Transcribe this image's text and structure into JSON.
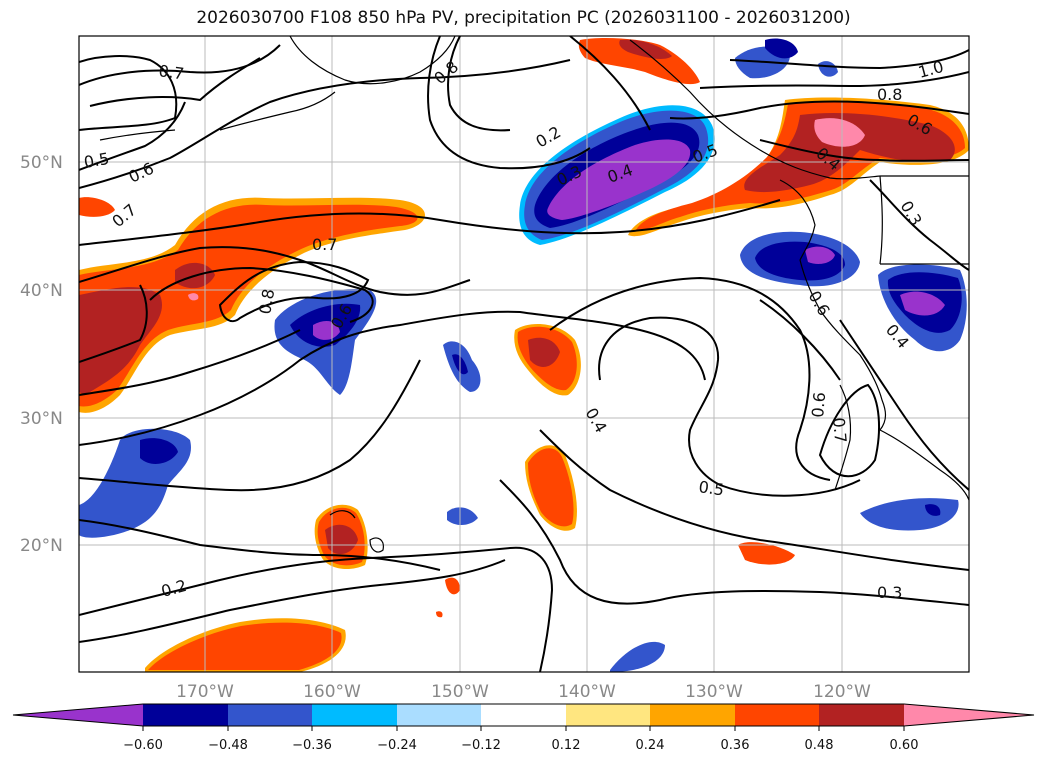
{
  "title": "2026030700 F108 850 hPa PV, precipitation PC (2026031100 - 2026031200)",
  "latitude_labels": [
    "50°N",
    "40°N",
    "30°N",
    "20°N"
  ],
  "longitude_labels": [
    "170°W",
    "160°W",
    "150°W",
    "140°W",
    "130°W",
    "120°W"
  ],
  "colorbar": {
    "ticks": [
      "−0.60",
      "−0.48",
      "−0.36",
      "−0.24",
      "−0.12",
      "0.12",
      "0.24",
      "0.36",
      "0.48",
      "0.60"
    ],
    "colors": [
      "#9933cc",
      "#000099",
      "#3355cc",
      "#00bbff",
      "#aaddff",
      "#ffffff",
      "#ffe680",
      "#ffa500",
      "#ff4500",
      "#b22222",
      "#ff88aa"
    ]
  },
  "contour_labels": [
    "0.7",
    "0.8",
    "0.5",
    "0.6",
    "0.7",
    "0.7",
    "0.8",
    "0.6",
    "0.2",
    "0.3",
    "0.4",
    "0.5",
    "1.0",
    "0.8",
    "0.6",
    "0.4",
    "0.3",
    "0.6",
    "0.4",
    "0.6",
    "0.7",
    "0.4",
    "0.5",
    "0.2",
    "0.3"
  ],
  "colors": {
    "negative_strong": "#9933cc",
    "negative": "#000099",
    "positive": "#ff4500",
    "positive_strong": "#b22222",
    "positive_max": "#ff88aa",
    "grid": "#bbbbbb",
    "contour": "#000000"
  }
}
